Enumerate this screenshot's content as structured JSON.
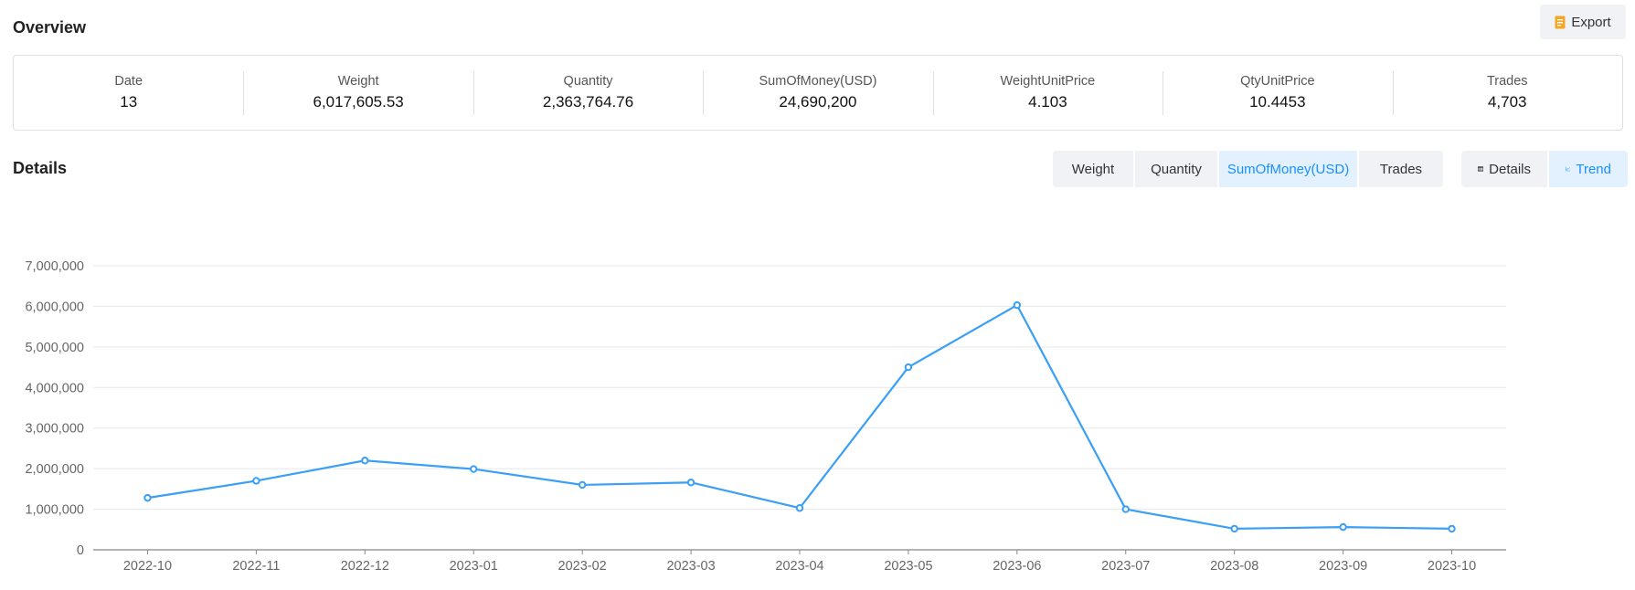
{
  "overview": {
    "title": "Overview",
    "export_label": "Export",
    "stats": [
      {
        "label": "Date",
        "value": "13"
      },
      {
        "label": "Weight",
        "value": "6,017,605.53"
      },
      {
        "label": "Quantity",
        "value": "2,363,764.76"
      },
      {
        "label": "SumOfMoney(USD)",
        "value": "24,690,200"
      },
      {
        "label": "WeightUnitPrice",
        "value": "4.103"
      },
      {
        "label": "QtyUnitPrice",
        "value": "10.4453"
      },
      {
        "label": "Trades",
        "value": "4,703"
      }
    ]
  },
  "details": {
    "title": "Details",
    "metric_tabs": [
      "Weight",
      "Quantity",
      "SumOfMoney(USD)",
      "Trades"
    ],
    "active_metric": "SumOfMoney(USD)",
    "view_tabs": [
      "Details",
      "Trend"
    ],
    "active_view": "Trend"
  },
  "colors": {
    "accent": "#1890ff",
    "line": "#3a9ff5",
    "grid": "#e6e8ee",
    "axis": "#888888"
  },
  "chart_data": {
    "type": "line",
    "x": [
      "2022-10",
      "2022-11",
      "2022-12",
      "2023-01",
      "2023-02",
      "2023-03",
      "2023-04",
      "2023-05",
      "2023-06",
      "2023-07",
      "2023-08",
      "2023-09",
      "2023-10"
    ],
    "series": [
      {
        "values": [
          1280000,
          1700000,
          2200000,
          1990000,
          1600000,
          1660000,
          1030000,
          4500000,
          6030000,
          1000000,
          520000,
          560000,
          520000
        ]
      }
    ],
    "ylim": [
      0,
      7000000
    ],
    "y_ticks": [
      0,
      1000000,
      2000000,
      3000000,
      4000000,
      5000000,
      6000000,
      7000000
    ],
    "y_tick_labels": [
      "0",
      "1,000,000",
      "2,000,000",
      "3,000,000",
      "4,000,000",
      "5,000,000",
      "6,000,000",
      "7,000,000"
    ],
    "grid": true,
    "title": "",
    "xlabel": "",
    "ylabel": ""
  }
}
